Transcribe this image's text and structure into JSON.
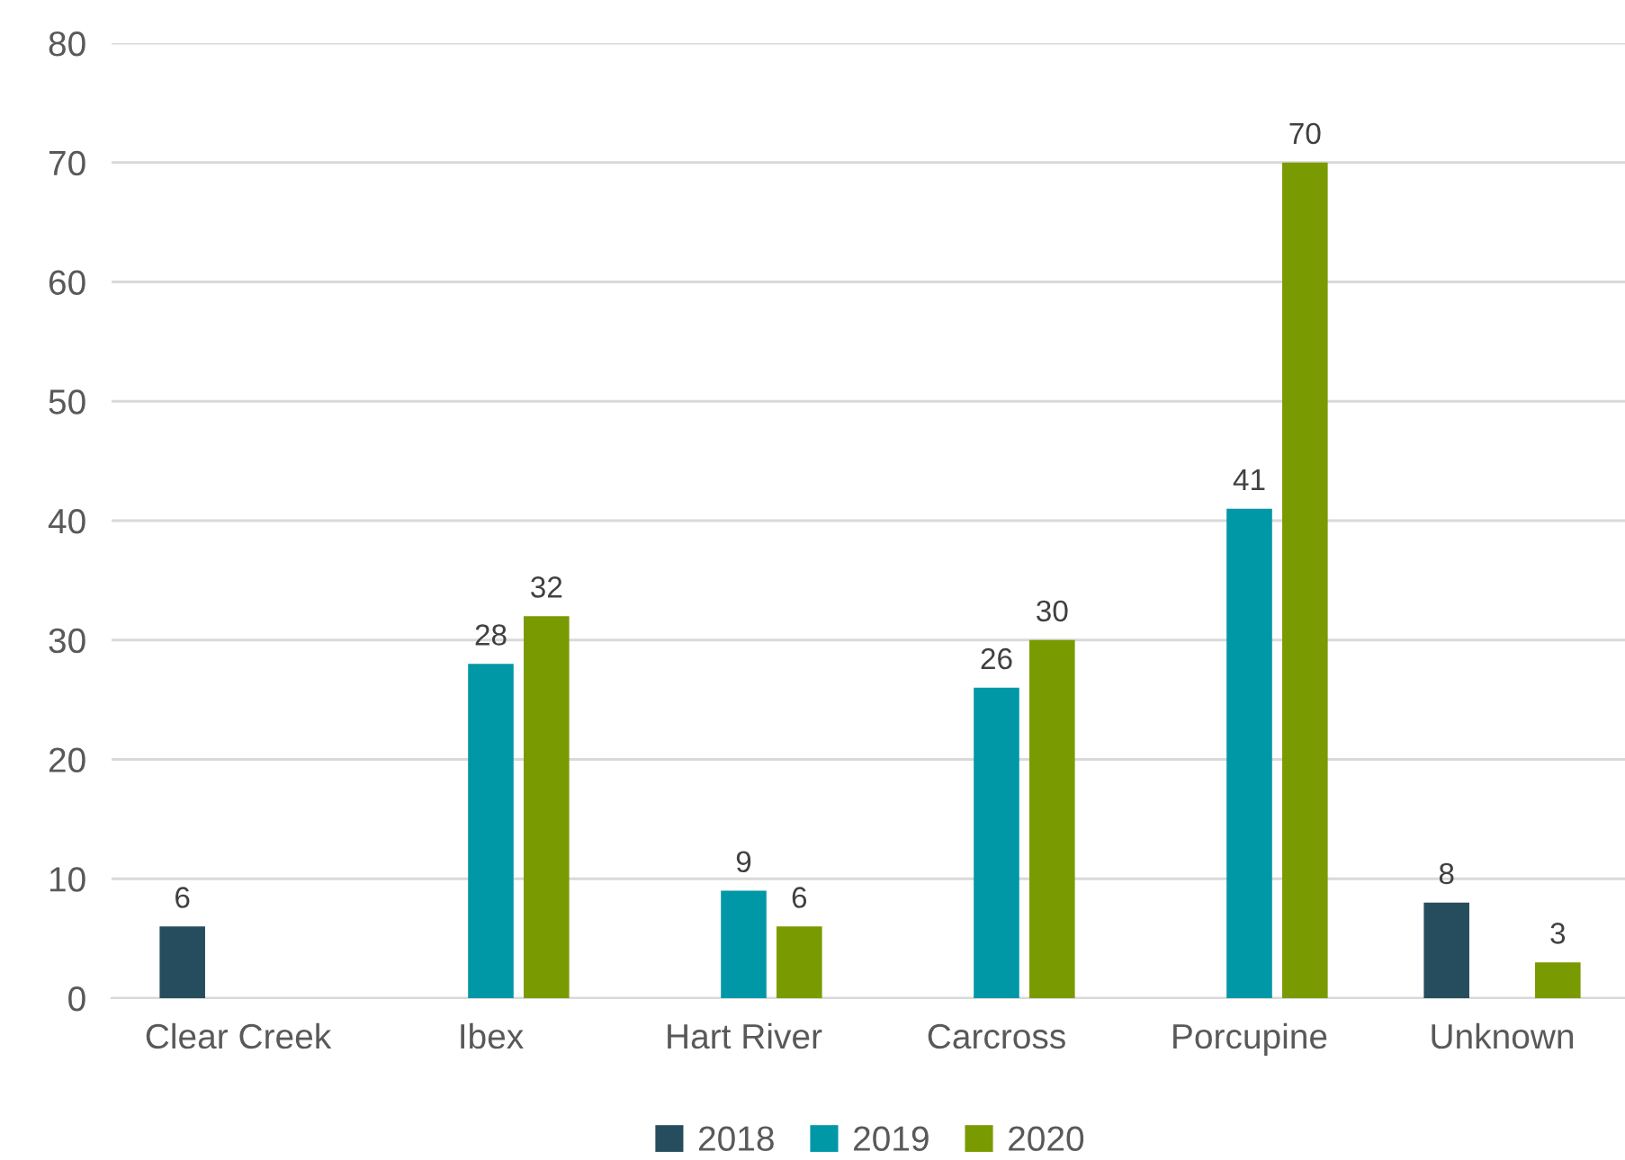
{
  "chart_data": {
    "type": "bar",
    "categories": [
      "Clear Creek",
      "Ibex",
      "Hart River",
      "Carcross",
      "Porcupine",
      "Unknown"
    ],
    "series": [
      {
        "name": "2018",
        "color": "#264d5e",
        "values": [
          6,
          null,
          null,
          null,
          null,
          8
        ]
      },
      {
        "name": "2019",
        "color": "#0097a7",
        "values": [
          null,
          28,
          9,
          26,
          41,
          null
        ]
      },
      {
        "name": "2020",
        "color": "#7a9a01",
        "values": [
          null,
          32,
          6,
          30,
          70,
          3
        ]
      }
    ],
    "ylim": [
      0,
      80
    ],
    "yticks": [
      0,
      10,
      20,
      30,
      40,
      50,
      60,
      70,
      80
    ],
    "grid": "y",
    "legend": "bottom",
    "data_labels": true
  }
}
